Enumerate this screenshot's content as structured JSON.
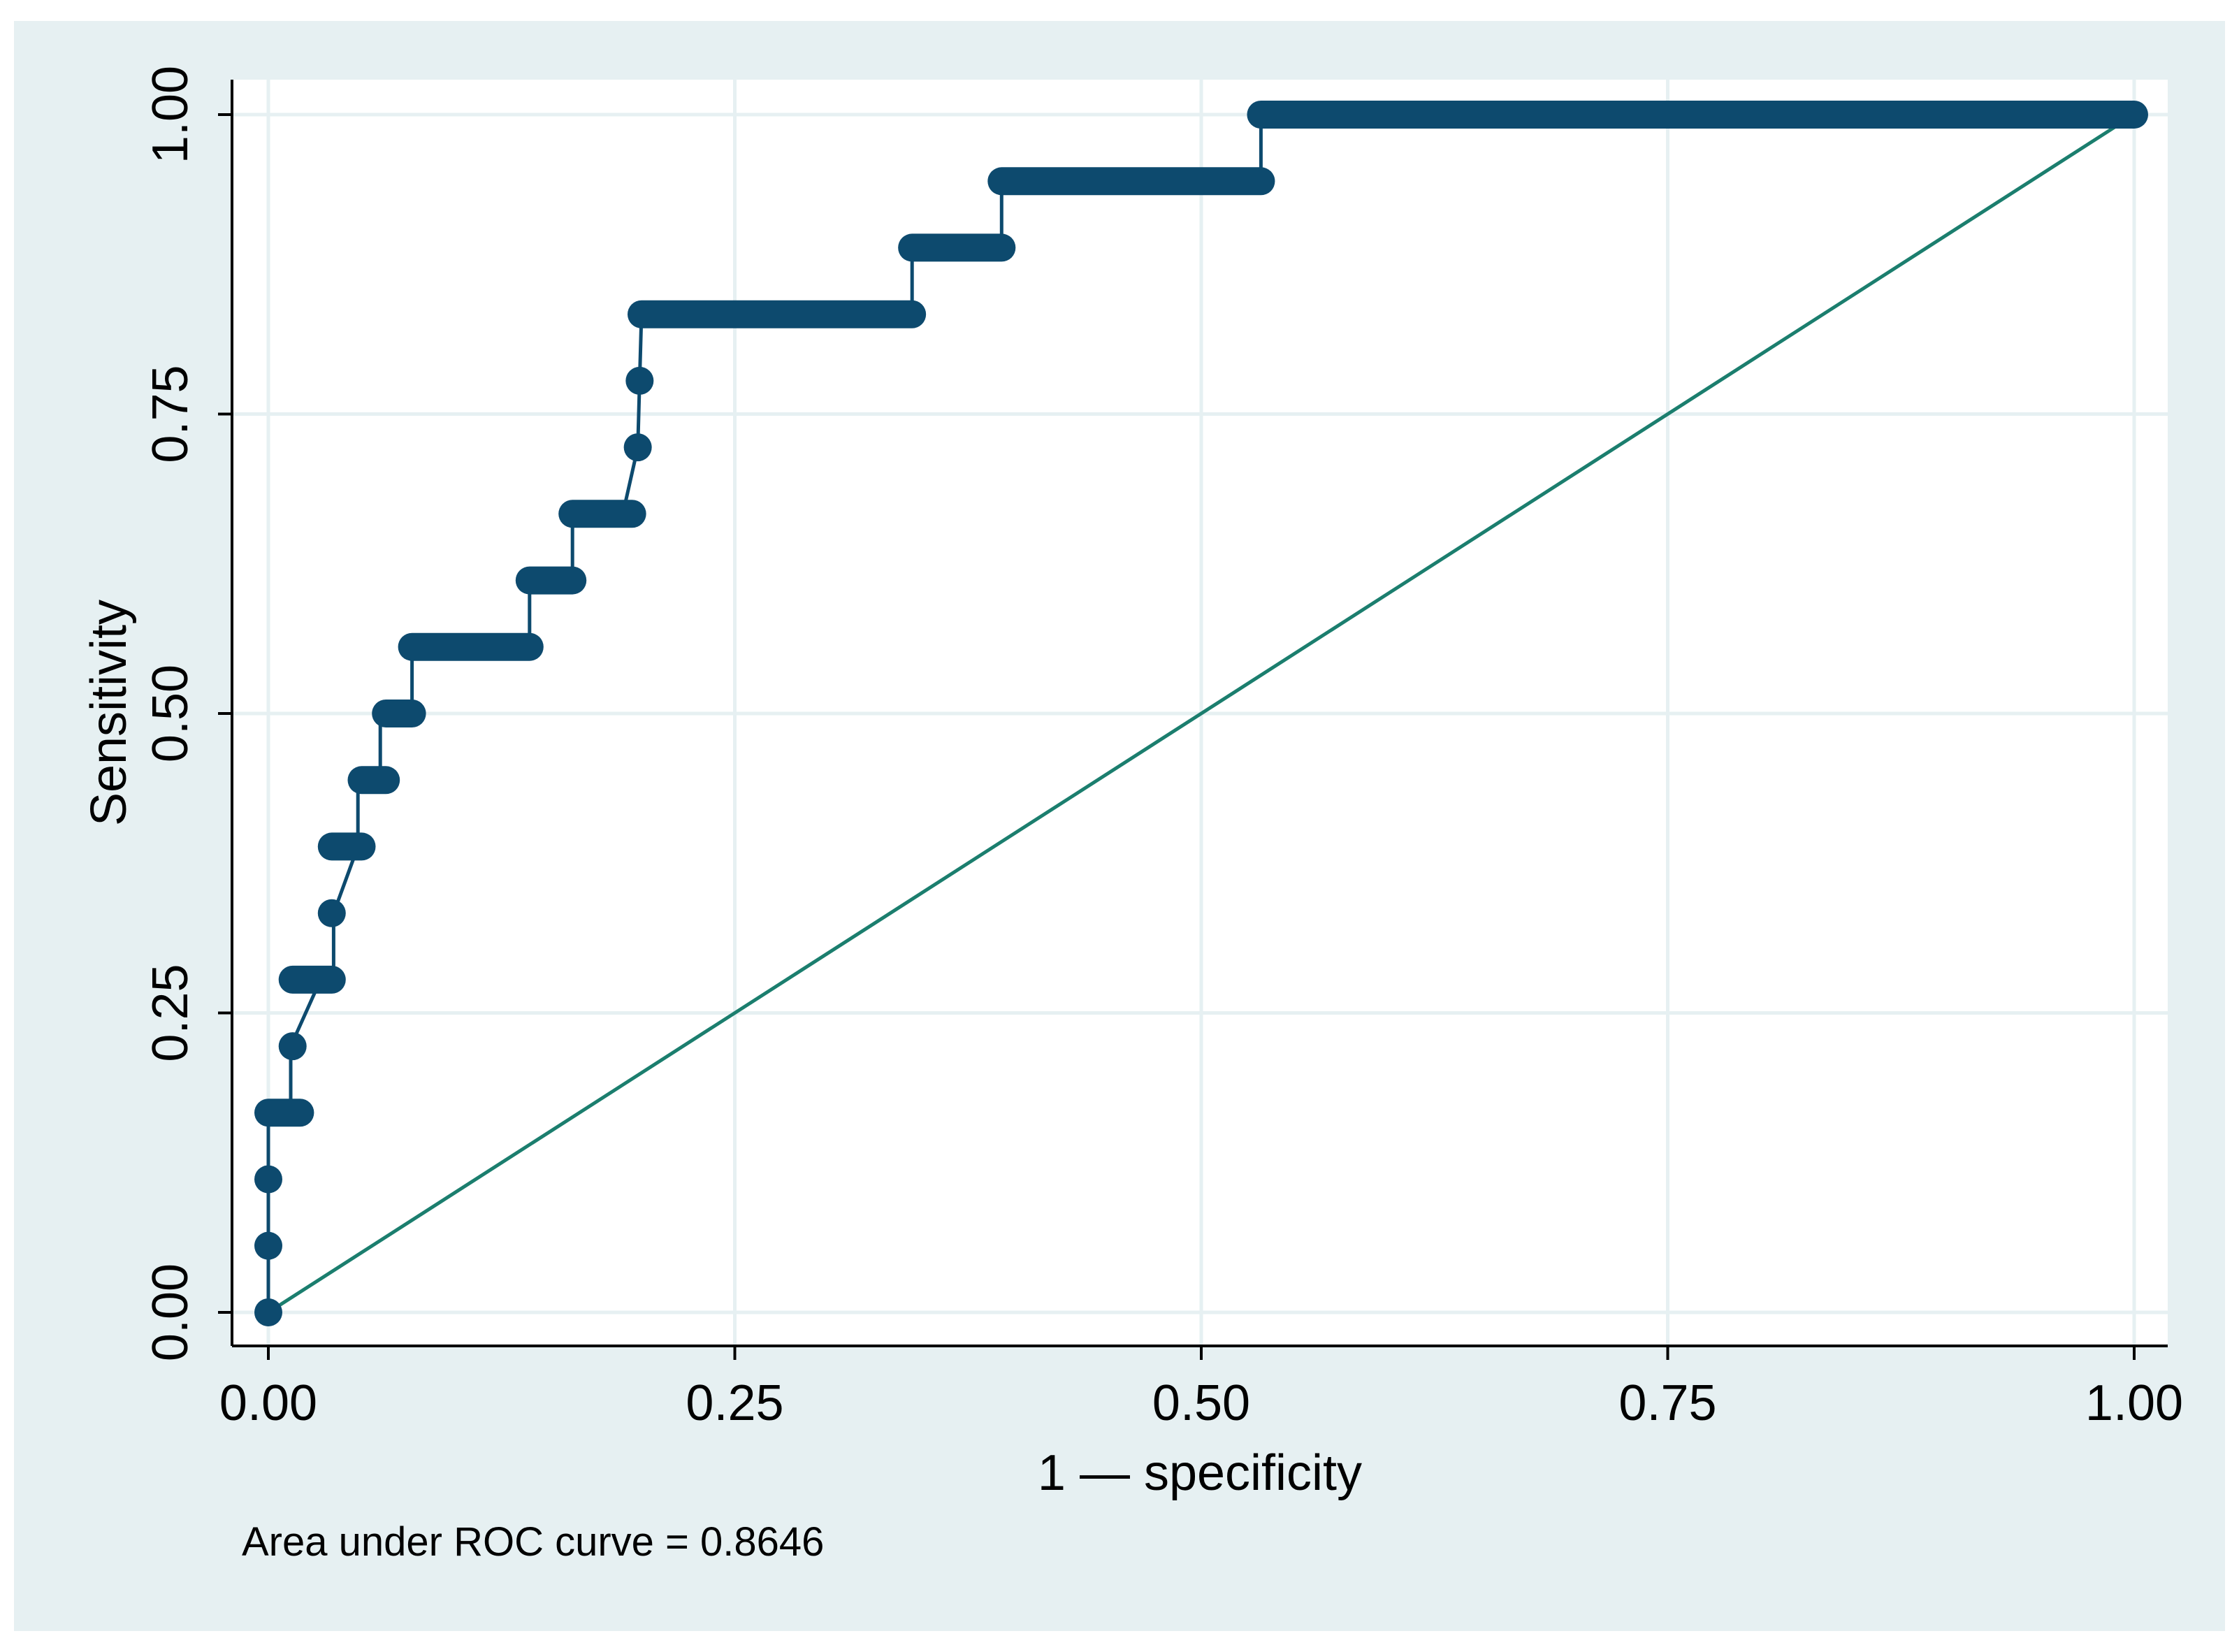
{
  "chart_data": {
    "type": "line",
    "xlabel": "1 — specificity",
    "ylabel": "Sensitivity",
    "xlim": [
      0,
      1
    ],
    "ylim": [
      0,
      1
    ],
    "xticks": [
      0,
      0.25,
      0.5,
      0.75,
      1
    ],
    "yticks": [
      0,
      0.25,
      0.5,
      0.75,
      1
    ],
    "xtick_labels": [
      "0.00",
      "0.25",
      "0.50",
      "0.75",
      "1.00"
    ],
    "ytick_labels": [
      "0.00",
      "0.25",
      "0.50",
      "0.75",
      "1.00"
    ],
    "grid": true,
    "series": [
      {
        "color": "#0d4a6e",
        "x": [
          0,
          0,
          0,
          0,
          0.012,
          0.012,
          0.028,
          0.035,
          0.035,
          0.048,
          0.048,
          0.06,
          0.06,
          0.077,
          0.077,
          0.14,
          0.14,
          0.163,
          0.163,
          0.19,
          0.198,
          0.199,
          0.2,
          0.345,
          0.345,
          0.393,
          0.393,
          0.532,
          0.532,
          1.0
        ],
        "y": [
          0,
          0.0556,
          0.1111,
          0.1667,
          0.1667,
          0.2222,
          0.2778,
          0.2778,
          0.3333,
          0.3889,
          0.4444,
          0.4444,
          0.5,
          0.5,
          0.5556,
          0.5556,
          0.6111,
          0.6111,
          0.6667,
          0.6667,
          0.7222,
          0.7778,
          0.8333,
          0.8333,
          0.8889,
          0.8889,
          0.9444,
          0.9444,
          1.0,
          1.0
        ],
        "steps": [
          {
            "x0": 0.0,
            "x1": 0.0,
            "y": 0.0
          },
          {
            "x0": 0.0,
            "x1": 0.0,
            "y": 0.0556
          },
          {
            "x0": 0.0,
            "x1": 0.0,
            "y": 0.1111
          },
          {
            "x0": 0.0,
            "x1": 0.017,
            "y": 0.1667
          },
          {
            "x0": 0.013,
            "x1": 0.013,
            "y": 0.2222
          },
          {
            "x0": 0.013,
            "x1": 0.034,
            "y": 0.2778
          },
          {
            "x0": 0.034,
            "x1": 0.034,
            "y": 0.3333
          },
          {
            "x0": 0.034,
            "x1": 0.05,
            "y": 0.3889
          },
          {
            "x0": 0.05,
            "x1": 0.063,
            "y": 0.4444
          },
          {
            "x0": 0.063,
            "x1": 0.077,
            "y": 0.5
          },
          {
            "x0": 0.077,
            "x1": 0.14,
            "y": 0.5556
          },
          {
            "x0": 0.14,
            "x1": 0.163,
            "y": 0.6111
          },
          {
            "x0": 0.163,
            "x1": 0.195,
            "y": 0.6667
          },
          {
            "x0": 0.198,
            "x1": 0.198,
            "y": 0.7222
          },
          {
            "x0": 0.199,
            "x1": 0.199,
            "y": 0.7778
          },
          {
            "x0": 0.2,
            "x1": 0.345,
            "y": 0.8333
          },
          {
            "x0": 0.345,
            "x1": 0.393,
            "y": 0.8889
          },
          {
            "x0": 0.393,
            "x1": 0.532,
            "y": 0.9444
          },
          {
            "x0": 0.532,
            "x1": 1.0,
            "y": 1.0
          }
        ]
      },
      {
        "color": "#1b7e6e",
        "x": [
          0,
          1
        ],
        "y": [
          0,
          1
        ]
      }
    ],
    "annotation": "Area under ROC curve = 0.8646"
  },
  "colors": {
    "outer_background": "#e6f0f2",
    "plot_background": "#ffffff",
    "grid": "#e6f0f2",
    "roc_curve": "#0d4a6e",
    "reference_line": "#1b7e6e"
  }
}
